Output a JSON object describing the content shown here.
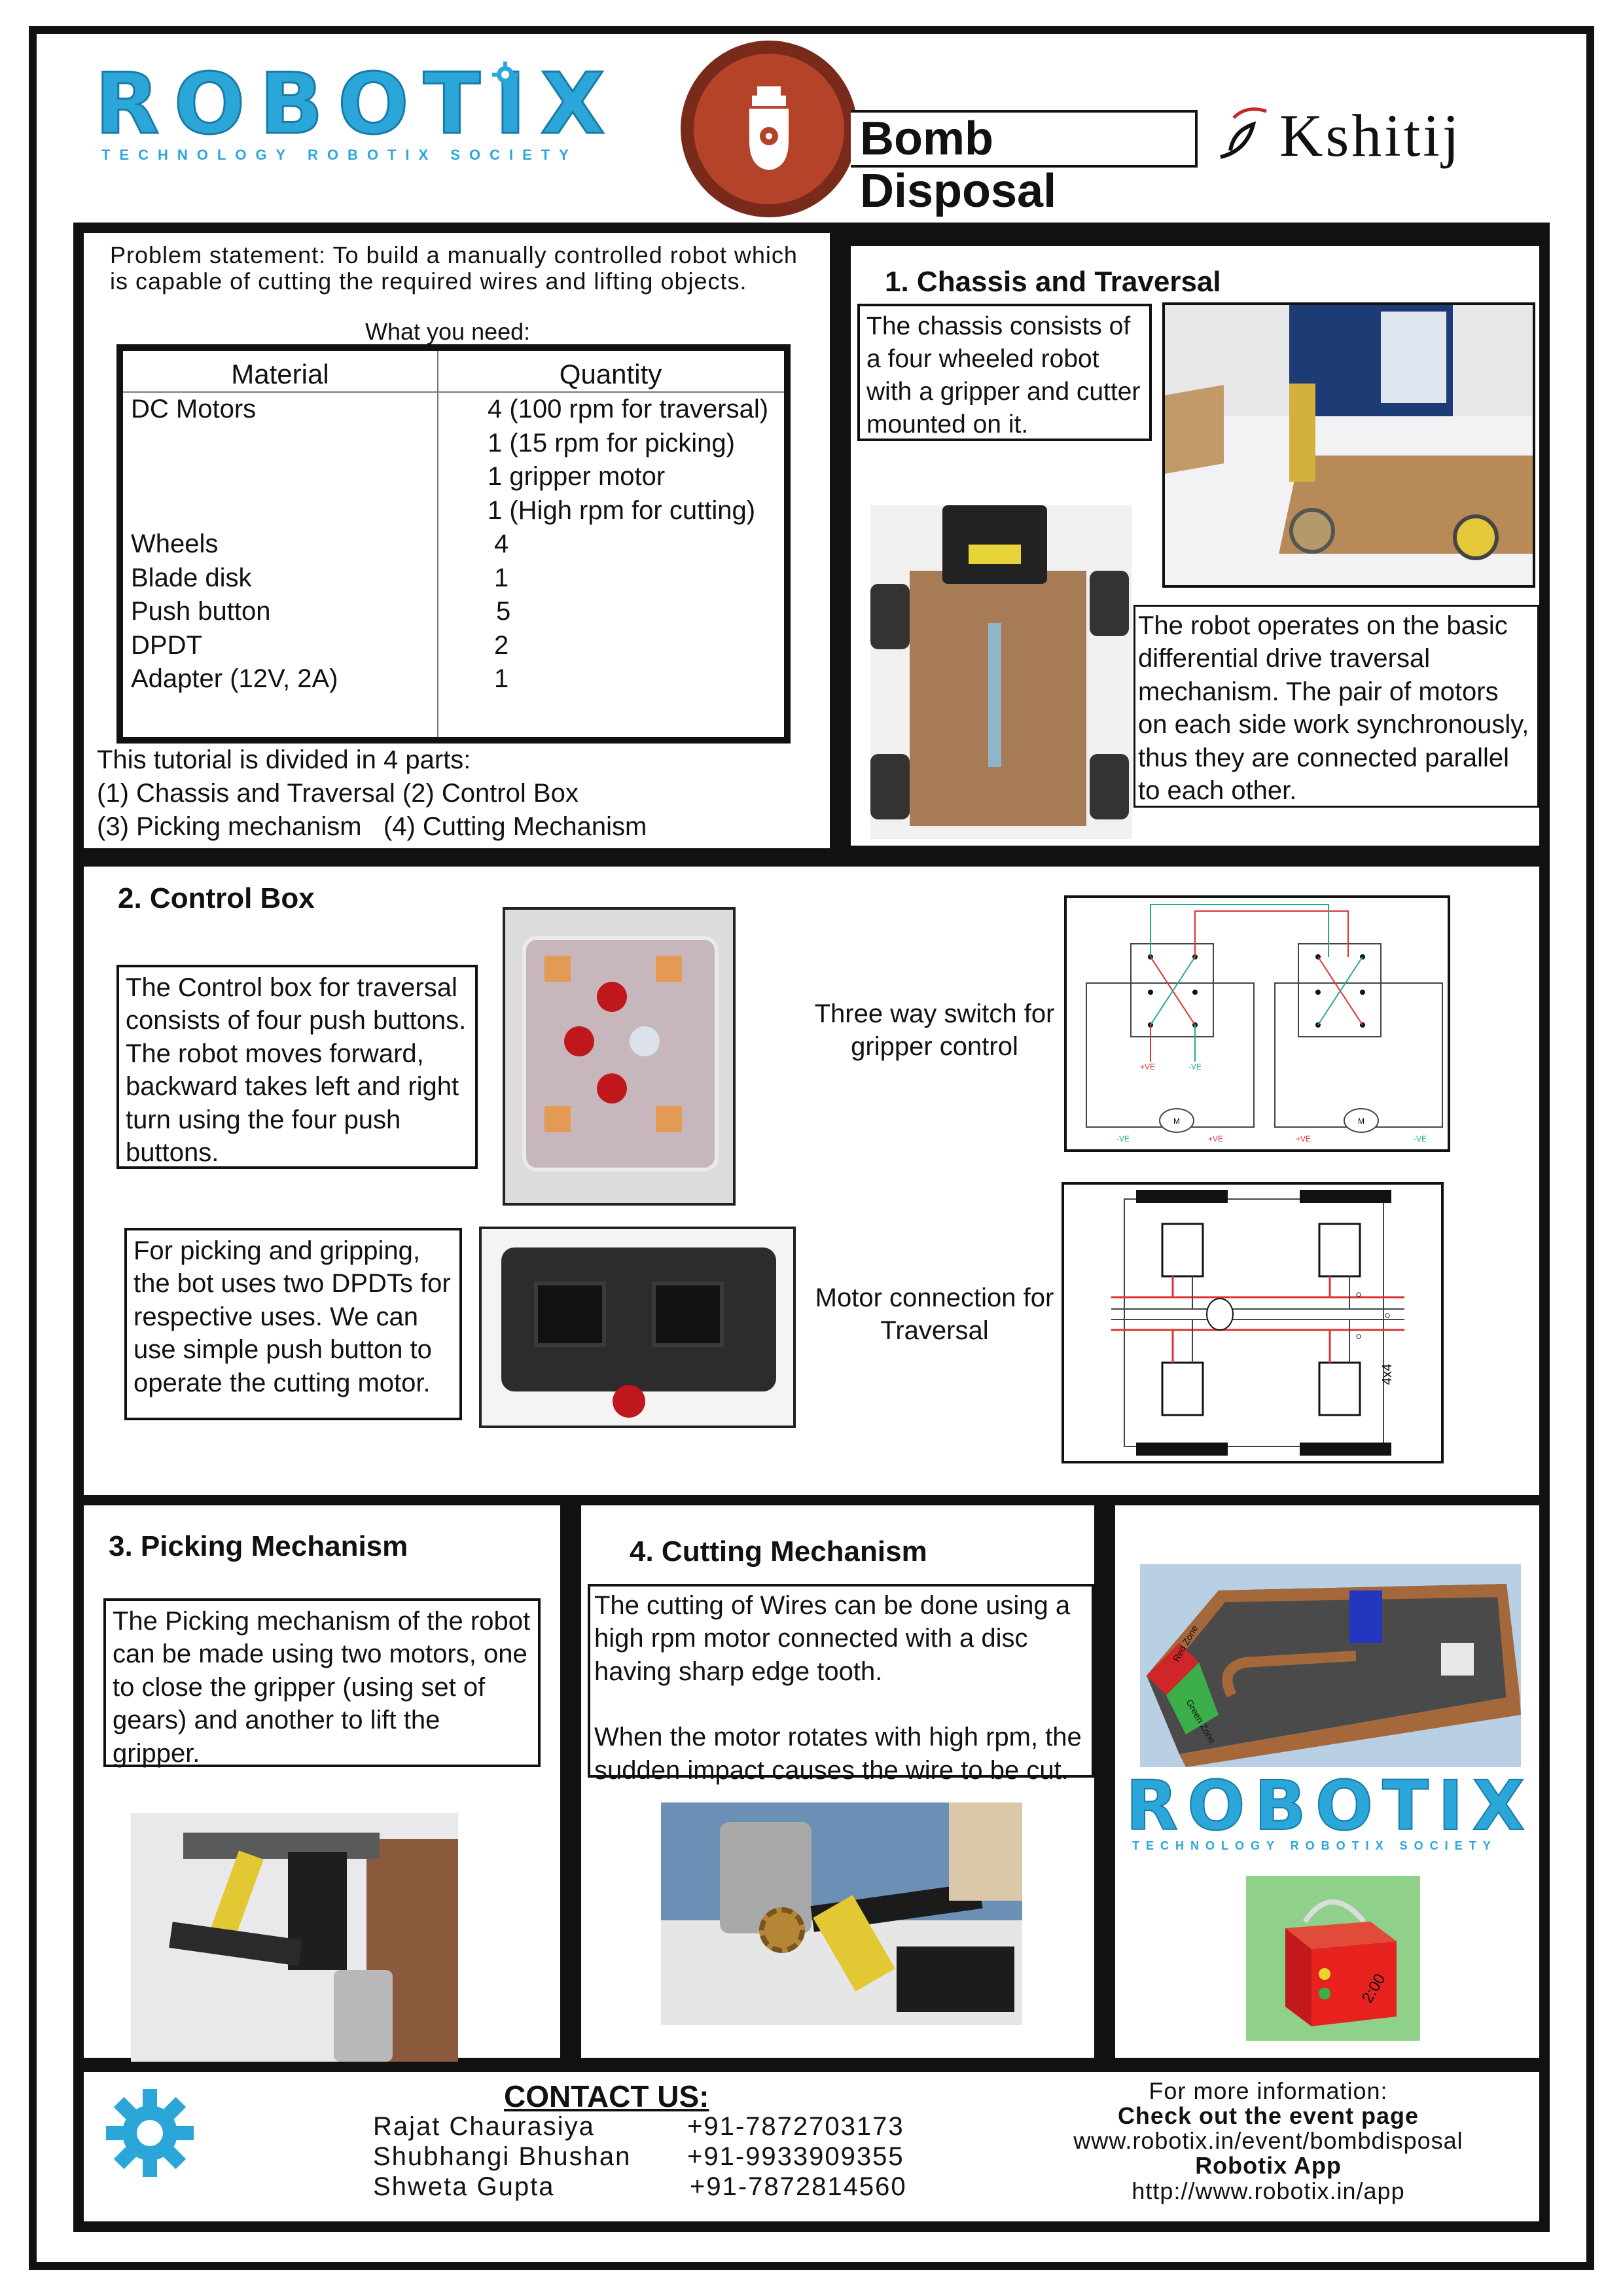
{
  "header": {
    "logo_word": "ROBOTIX",
    "logo_tagline": "TECHNOLOGY ROBOTIX SOCIETY",
    "event_title": "Bomb Disposal",
    "fest_name": "Kshitij",
    "colors": {
      "logo_blue": "#2aa6d8",
      "badge_red": "#b5432a",
      "badge_dark": "#7a2a1a"
    }
  },
  "intro": {
    "problem_statement": "Problem statement: To build a manually controlled robot which is capable of cutting the required wires and lifting objects.",
    "what_you_need": "What you need:",
    "table": {
      "col_material": "Material",
      "col_quantity": "Quantity",
      "rows": [
        {
          "material": "DC Motors",
          "quantity": "4 (100 rpm for traversal)"
        },
        {
          "material": "",
          "quantity": "1 (15 rpm for picking)"
        },
        {
          "material": "",
          "quantity": "1 gripper motor"
        },
        {
          "material": "",
          "quantity": "1 (High rpm for cutting)"
        },
        {
          "material": "Wheels",
          "quantity": "4"
        },
        {
          "material": "Blade disk",
          "quantity": "1"
        },
        {
          "material": "Push button",
          "quantity": "5"
        },
        {
          "material": "DPDT",
          "quantity": "2"
        },
        {
          "material": "Adapter (12V, 2A)",
          "quantity": "1"
        }
      ]
    },
    "tutorial_lines": [
      "This tutorial is divided in 4 parts:",
      "(1) Chassis and Traversal (2) Control Box",
      "(3) Picking mechanism   (4) Cutting Mechanism"
    ]
  },
  "chassis": {
    "title": "1. Chassis and Traversal",
    "desc1": "The chassis consists of a four wheeled robot with a gripper and cutter mounted on it.",
    "desc2": "The robot operates on the basic differential drive traversal mechanism. The pair of motors on each side work synchronously, thus they are connected parallel to each other."
  },
  "control_box": {
    "title": "2. Control Box",
    "desc1": "The Control box for traversal consists of four push buttons. The robot moves forward, backward takes left and right turn using the four push buttons.",
    "desc2": "For picking and gripping, the bot uses two DPDTs for respective uses. We can use simple push button to operate the cutting motor.",
    "switch_caption": "Three way switch for gripper control",
    "motor_caption": "Motor connection for Traversal",
    "diagram_labels": {
      "pos": "+VE",
      "neg": "-VE",
      "motor": "M",
      "drive": "4x4"
    }
  },
  "picking": {
    "title": "3. Picking Mechanism",
    "desc": "The Picking mechanism of the robot can be made using two motors, one to close the gripper (using set of gears) and another to lift the gripper."
  },
  "cutting": {
    "title": "4. Cutting Mechanism",
    "desc1": "The cutting of Wires can be done using a high rpm motor connected with a disc having sharp edge tooth.",
    "desc2": "When the motor rotates with high rpm, the sudden impact causes the wire to be cut."
  },
  "arena": {
    "zone_red": "Red Zone",
    "zone_green": "Green Zone",
    "bomb_timer": "2:00"
  },
  "contact": {
    "title": "CONTACT US:",
    "people": [
      {
        "name": "Rajat Chaurasiya",
        "phone": "+91-7872703173"
      },
      {
        "name": "Shubhangi Bhushan",
        "phone": "+91-9933909355"
      },
      {
        "name": "Shweta Gupta",
        "phone": "+91-7872814560"
      }
    ],
    "more_info": "For more information:",
    "event_page_label": "Check out the event page",
    "event_url": "www.robotix.in/event/bombdisposal",
    "app_label": "Robotix App",
    "app_url": "http://www.robotix.in/app"
  }
}
